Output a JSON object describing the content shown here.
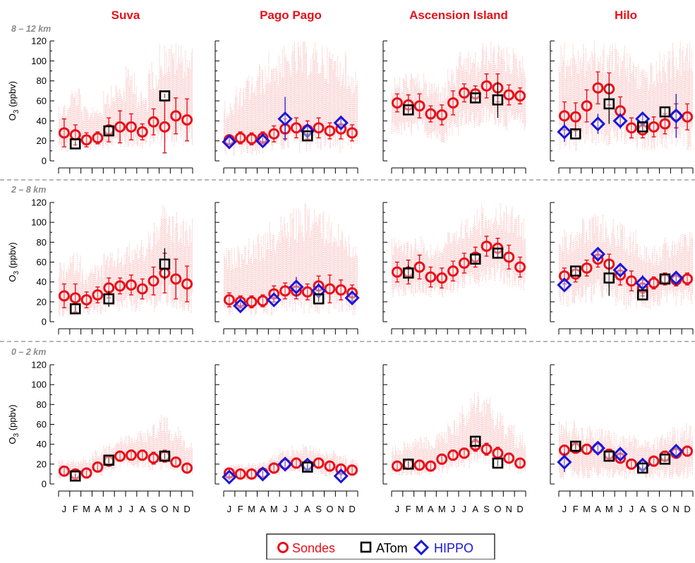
{
  "colors": {
    "sondes": "#e8101a",
    "raw": "#f7b5b5",
    "atom": "#000000",
    "hippo": "#1a16d8",
    "title": "#e8101a",
    "band": "#8c8c8c",
    "divider": "#8c8c8c"
  },
  "figure": {
    "ylabel_main": "O",
    "ylabel_sub": "3",
    "ylabel_unit": " (ppbv)",
    "yticks": [
      "0",
      "20",
      "40",
      "60",
      "80",
      "100",
      "120"
    ]
  },
  "chart_data": {
    "type": "scatter",
    "months": [
      "J",
      "F",
      "M",
      "A",
      "M",
      "J",
      "J",
      "A",
      "S",
      "O",
      "N",
      "D"
    ],
    "ylim": [
      0,
      120
    ],
    "sites": [
      "Suva",
      "Pago Pago",
      "Ascension Island",
      "Hilo"
    ],
    "bands": [
      "8 – 12 km",
      "2 – 8 km",
      "0 – 2 km"
    ],
    "legend": {
      "sondes": "Sondes",
      "atom": "ATom",
      "hippo": "HIPPO"
    },
    "panels": [
      {
        "site": "Suva",
        "band": "8 – 12 km",
        "sondes": [
          28,
          26,
          21,
          23,
          31,
          34,
          34,
          29,
          39,
          34,
          45,
          41
        ],
        "sondes_err": [
          14,
          10,
          7,
          6,
          12,
          16,
          13,
          8,
          13,
          26,
          18,
          21
        ],
        "raw_low": [
          8,
          10,
          11,
          12,
          12,
          12,
          12,
          11,
          14,
          14,
          14,
          15
        ],
        "raw_high": [
          60,
          75,
          55,
          58,
          75,
          80,
          95,
          70,
          100,
          120,
          120,
          118
        ],
        "atom": [
          {
            "month": 2,
            "value": 17,
            "err": 2
          },
          {
            "month": 5,
            "value": 30,
            "err": 4
          },
          {
            "month": 10,
            "value": 65,
            "err": 2
          }
        ],
        "hippo": []
      },
      {
        "site": "Pago Pago",
        "band": "8 – 12 km",
        "sondes": [
          21,
          23,
          22,
          23,
          27,
          32,
          33,
          31,
          33,
          30,
          32,
          28
        ],
        "sondes_err": [
          5,
          6,
          6,
          6,
          8,
          10,
          10,
          9,
          10,
          8,
          10,
          8
        ],
        "raw_low": [
          5,
          6,
          6,
          6,
          7,
          8,
          8,
          8,
          8,
          8,
          8,
          8
        ],
        "raw_high": [
          60,
          75,
          88,
          98,
          110,
          115,
          120,
          120,
          120,
          115,
          110,
          95
        ],
        "atom": [
          {
            "month": 8,
            "value": 25,
            "err": 3
          }
        ],
        "hippo": [
          {
            "month": 1,
            "value": 19,
            "err": 3
          },
          {
            "month": 4,
            "value": 20,
            "err": 3
          },
          {
            "month": 6,
            "value": 42,
            "err": 22
          },
          {
            "month": 8,
            "value": 30,
            "err": 7
          },
          {
            "month": 11,
            "value": 38,
            "err": 4
          }
        ]
      },
      {
        "site": "Ascension Island",
        "band": "8 – 12 km",
        "sondes": [
          58,
          56,
          55,
          47,
          46,
          58,
          68,
          67,
          75,
          73,
          66,
          65
        ],
        "sondes_err": [
          9,
          10,
          12,
          8,
          10,
          12,
          9,
          8,
          12,
          14,
          10,
          8
        ],
        "raw_low": [
          25,
          25,
          28,
          22,
          18,
          25,
          35,
          30,
          35,
          35,
          30,
          30
        ],
        "raw_high": [
          85,
          90,
          88,
          82,
          80,
          95,
          110,
          110,
          120,
          120,
          115,
          110
        ],
        "atom": [
          {
            "month": 2,
            "value": 51,
            "err": 3
          },
          {
            "month": 8,
            "value": 63,
            "err": 4
          },
          {
            "month": 10,
            "value": 61,
            "err": 18
          }
        ],
        "hippo": []
      },
      {
        "site": "Hilo",
        "band": "8 – 12 km",
        "sondes": [
          45,
          44,
          55,
          73,
          72,
          50,
          33,
          31,
          34,
          37,
          45,
          44
        ],
        "sondes_err": [
          14,
          14,
          16,
          16,
          16,
          14,
          10,
          8,
          10,
          10,
          12,
          13
        ],
        "raw_low": [
          10,
          10,
          12,
          15,
          15,
          12,
          10,
          10,
          10,
          10,
          10,
          10
        ],
        "raw_high": [
          120,
          120,
          120,
          120,
          120,
          120,
          110,
          100,
          100,
          110,
          120,
          120
        ],
        "atom": [
          {
            "month": 2,
            "value": 27,
            "err": 3
          },
          {
            "month": 5,
            "value": 57,
            "err": 20
          },
          {
            "month": 8,
            "value": 34,
            "err": 4
          },
          {
            "month": 10,
            "value": 49,
            "err": 4
          }
        ],
        "hippo": [
          {
            "month": 1,
            "value": 29,
            "err": 10
          },
          {
            "month": 4,
            "value": 37,
            "err": 10
          },
          {
            "month": 6,
            "value": 40,
            "err": 8
          },
          {
            "month": 8,
            "value": 42,
            "err": 6
          },
          {
            "month": 11,
            "value": 45,
            "err": 22
          }
        ]
      },
      {
        "site": "Suva",
        "band": "2 – 8 km",
        "sondes": [
          26,
          24,
          22,
          27,
          34,
          36,
          37,
          33,
          41,
          49,
          43,
          38
        ],
        "sondes_err": [
          12,
          14,
          8,
          8,
          10,
          8,
          10,
          10,
          14,
          20,
          20,
          18
        ],
        "raw_low": [
          5,
          5,
          6,
          7,
          8,
          9,
          10,
          9,
          10,
          12,
          10,
          8
        ],
        "raw_high": [
          60,
          70,
          55,
          60,
          70,
          75,
          80,
          85,
          100,
          118,
          110,
          105
        ],
        "atom": [
          {
            "month": 2,
            "value": 13,
            "err": 3
          },
          {
            "month": 5,
            "value": 23,
            "err": 8
          },
          {
            "month": 10,
            "value": 58,
            "err": 16
          }
        ],
        "hippo": []
      },
      {
        "site": "Pago Pago",
        "band": "2 – 8 km",
        "sondes": [
          22,
          20,
          20,
          21,
          28,
          31,
          31,
          30,
          36,
          33,
          32,
          29
        ],
        "sondes_err": [
          7,
          6,
          6,
          6,
          8,
          8,
          8,
          8,
          10,
          14,
          10,
          8
        ],
        "raw_low": [
          5,
          5,
          5,
          5,
          6,
          7,
          7,
          7,
          8,
          8,
          7,
          6
        ],
        "raw_high": [
          75,
          80,
          85,
          90,
          100,
          110,
          115,
          120,
          120,
          110,
          100,
          90
        ],
        "atom": [
          {
            "month": 9,
            "value": 23,
            "err": 3
          }
        ],
        "hippo": [
          {
            "month": 2,
            "value": 16,
            "err": 3
          },
          {
            "month": 5,
            "value": 22,
            "err": 3
          },
          {
            "month": 7,
            "value": 35,
            "err": 10
          },
          {
            "month": 9,
            "value": 31,
            "err": 8
          },
          {
            "month": 12,
            "value": 24,
            "err": 7
          }
        ]
      },
      {
        "site": "Ascension Island",
        "band": "2 – 8 km",
        "sondes": [
          50,
          50,
          55,
          45,
          44,
          51,
          59,
          65,
          76,
          74,
          65,
          55
        ],
        "sondes_err": [
          10,
          12,
          12,
          10,
          10,
          10,
          10,
          10,
          10,
          10,
          12,
          10
        ],
        "raw_low": [
          25,
          25,
          28,
          25,
          25,
          28,
          32,
          35,
          40,
          40,
          35,
          30
        ],
        "raw_high": [
          85,
          85,
          88,
          80,
          82,
          92,
          105,
          115,
          120,
          120,
          118,
          110
        ],
        "atom": [
          {
            "month": 2,
            "value": 49,
            "err": 8
          },
          {
            "month": 8,
            "value": 63,
            "err": 4
          },
          {
            "month": 10,
            "value": 69,
            "err": 4
          }
        ],
        "hippo": []
      },
      {
        "site": "Hilo",
        "band": "2 – 8 km",
        "sondes": [
          46,
          48,
          54,
          63,
          58,
          47,
          41,
          34,
          39,
          43,
          42,
          43
        ],
        "sondes_err": [
          8,
          8,
          8,
          8,
          10,
          10,
          10,
          8,
          6,
          6,
          6,
          6
        ],
        "raw_low": [
          15,
          15,
          18,
          22,
          20,
          15,
          12,
          12,
          12,
          15,
          15,
          15
        ],
        "raw_high": [
          95,
          100,
          105,
          110,
          105,
          100,
          95,
          85,
          80,
          85,
          90,
          92
        ],
        "atom": [
          {
            "month": 2,
            "value": 51,
            "err": 4
          },
          {
            "month": 5,
            "value": 44,
            "err": 18
          },
          {
            "month": 8,
            "value": 27,
            "err": 3
          },
          {
            "month": 10,
            "value": 43,
            "err": 4
          }
        ],
        "hippo": [
          {
            "month": 1,
            "value": 37,
            "err": 4
          },
          {
            "month": 4,
            "value": 68,
            "err": 4
          },
          {
            "month": 6,
            "value": 52,
            "err": 5
          },
          {
            "month": 8,
            "value": 39,
            "err": 8
          },
          {
            "month": 11,
            "value": 44,
            "err": 4
          }
        ]
      },
      {
        "site": "Suva",
        "band": "0 – 2 km",
        "sondes": [
          13,
          10,
          11,
          17,
          23,
          28,
          29,
          29,
          26,
          28,
          22,
          16
        ],
        "sondes_err": [
          4,
          4,
          4,
          4,
          5,
          5,
          5,
          5,
          6,
          6,
          5,
          4
        ],
        "raw_low": [
          5,
          5,
          5,
          8,
          12,
          16,
          16,
          16,
          14,
          14,
          12,
          8
        ],
        "raw_high": [
          25,
          25,
          28,
          35,
          42,
          48,
          50,
          55,
          62,
          70,
          60,
          45
        ],
        "atom": [
          {
            "month": 2,
            "value": 8,
            "err": 2
          },
          {
            "month": 5,
            "value": 24,
            "err": 3
          },
          {
            "month": 10,
            "value": 28,
            "err": 3
          }
        ],
        "hippo": []
      },
      {
        "site": "Pago Pago",
        "band": "0 – 2 km",
        "sondes": [
          11,
          10,
          10,
          11,
          16,
          20,
          21,
          19,
          21,
          18,
          15,
          14
        ],
        "sondes_err": [
          4,
          4,
          4,
          4,
          5,
          5,
          5,
          5,
          5,
          5,
          5,
          4
        ],
        "raw_low": [
          4,
          4,
          4,
          5,
          8,
          10,
          10,
          10,
          10,
          8,
          7,
          6
        ],
        "raw_high": [
          20,
          20,
          22,
          25,
          30,
          35,
          38,
          40,
          38,
          34,
          30,
          26
        ],
        "atom": [
          {
            "month": 8,
            "value": 17,
            "err": 3
          }
        ],
        "hippo": [
          {
            "month": 1,
            "value": 7,
            "err": 3
          },
          {
            "month": 4,
            "value": 10,
            "err": 3
          },
          {
            "month": 6,
            "value": 20,
            "err": 3
          },
          {
            "month": 8,
            "value": 19,
            "err": 3
          },
          {
            "month": 11,
            "value": 8,
            "err": 3
          }
        ]
      },
      {
        "site": "Ascension Island",
        "band": "0 – 2 km",
        "sondes": [
          18,
          20,
          19,
          18,
          25,
          29,
          31,
          39,
          35,
          31,
          26,
          21
        ],
        "sondes_err": [
          4,
          4,
          4,
          4,
          5,
          5,
          5,
          6,
          6,
          6,
          5,
          4
        ],
        "raw_low": [
          8,
          8,
          8,
          8,
          10,
          14,
          16,
          20,
          20,
          16,
          12,
          10
        ],
        "raw_high": [
          40,
          45,
          48,
          48,
          55,
          65,
          80,
          95,
          88,
          75,
          62,
          50
        ],
        "atom": [
          {
            "month": 2,
            "value": 20,
            "err": 3
          },
          {
            "month": 8,
            "value": 43,
            "err": 4
          },
          {
            "month": 10,
            "value": 21,
            "err": 3
          }
        ],
        "hippo": []
      },
      {
        "site": "Hilo",
        "band": "0 – 2 km",
        "sondes": [
          34,
          36,
          35,
          36,
          30,
          26,
          20,
          19,
          23,
          28,
          31,
          33
        ],
        "sondes_err": [
          5,
          5,
          5,
          5,
          5,
          5,
          5,
          5,
          5,
          5,
          5,
          5
        ],
        "raw_low": [
          5,
          5,
          5,
          5,
          5,
          5,
          5,
          5,
          5,
          5,
          5,
          5
        ],
        "raw_high": [
          65,
          65,
          60,
          58,
          55,
          50,
          50,
          48,
          50,
          55,
          58,
          62
        ],
        "atom": [
          {
            "month": 2,
            "value": 38,
            "err": 3
          },
          {
            "month": 5,
            "value": 28,
            "err": 3
          },
          {
            "month": 8,
            "value": 16,
            "err": 3
          },
          {
            "month": 10,
            "value": 25,
            "err": 3
          }
        ],
        "hippo": [
          {
            "month": 1,
            "value": 22,
            "err": 10
          },
          {
            "month": 4,
            "value": 36,
            "err": 3
          },
          {
            "month": 6,
            "value": 30,
            "err": 5
          },
          {
            "month": 8,
            "value": 19,
            "err": 4
          },
          {
            "month": 11,
            "value": 33,
            "err": 4
          }
        ]
      }
    ]
  }
}
